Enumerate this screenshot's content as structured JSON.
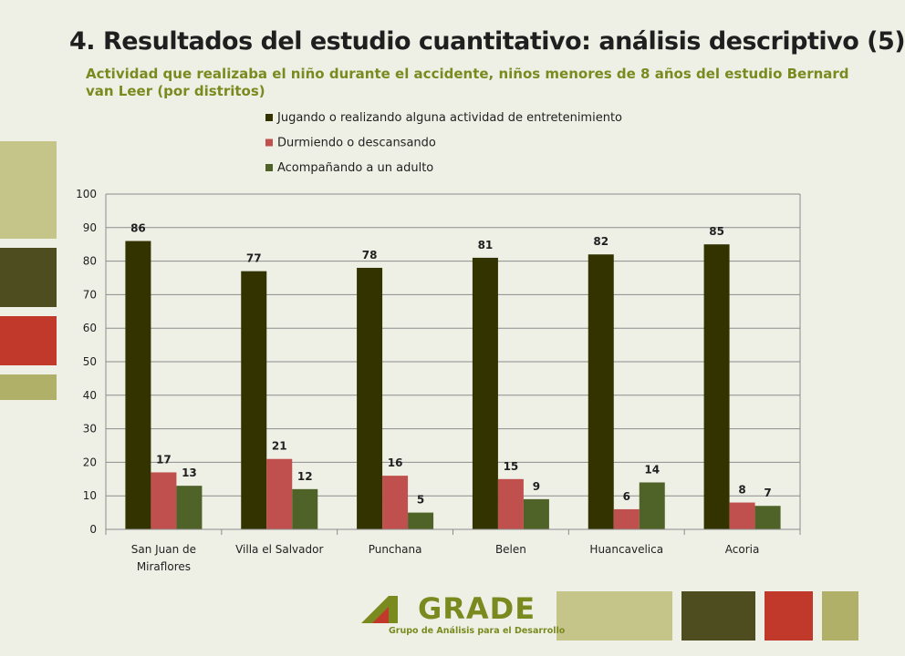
{
  "slide": {
    "title": "4. Resultados del estudio cuantitativo: análisis descriptivo (5)",
    "subtitle": "Actividad que realizaba el niño durante el accidente, niños menores de 8 años del estudio Bernard van Leer (por distritos)"
  },
  "logo": {
    "name": "GRADE",
    "tagline": "Grupo de Análisis para el Desarrollo"
  },
  "colors": {
    "jugando": "#333300",
    "durmiendo": "#c0504d",
    "acompanando": "#4f6228",
    "deco_light": "#c5c58a",
    "deco_dark": "#4d4d1f",
    "deco_red": "#c0392b",
    "deco_mid": "#b0b068"
  },
  "chart_data": {
    "type": "bar",
    "categories": [
      "San Juan de Miraflores",
      "Villa el Salvador",
      "Punchana",
      "Belen",
      "Huancavelica",
      "Acoria"
    ],
    "category_lines": [
      [
        "San Juan de",
        "Miraflores"
      ],
      [
        "Villa el Salvador"
      ],
      [
        "Punchana"
      ],
      [
        "Belen"
      ],
      [
        "Huancavelica"
      ],
      [
        "Acoria"
      ]
    ],
    "series": [
      {
        "name": "Jugando o realizando alguna actividad de entretenimiento",
        "values": [
          86,
          77,
          78,
          81,
          82,
          85
        ]
      },
      {
        "name": "Durmiendo o descansando",
        "values": [
          17,
          21,
          16,
          15,
          6,
          8
        ]
      },
      {
        "name": "Acompañando a un adulto",
        "values": [
          13,
          12,
          5,
          9,
          14,
          7
        ]
      }
    ],
    "data_labels": [
      [
        "86",
        "77",
        "78",
        "81",
        "82",
        "85"
      ],
      [
        "17",
        "21",
        "16",
        "15",
        "6",
        "8"
      ],
      [
        "13",
        "12",
        "5",
        "9",
        "14",
        "7"
      ]
    ],
    "ylim": [
      0,
      100
    ],
    "yticks": [
      "0",
      "10",
      "20",
      "30",
      "40",
      "50",
      "60",
      "70",
      "80",
      "90",
      "100"
    ],
    "grid": true,
    "legend_position": "top",
    "title": "",
    "xlabel": "",
    "ylabel": ""
  }
}
